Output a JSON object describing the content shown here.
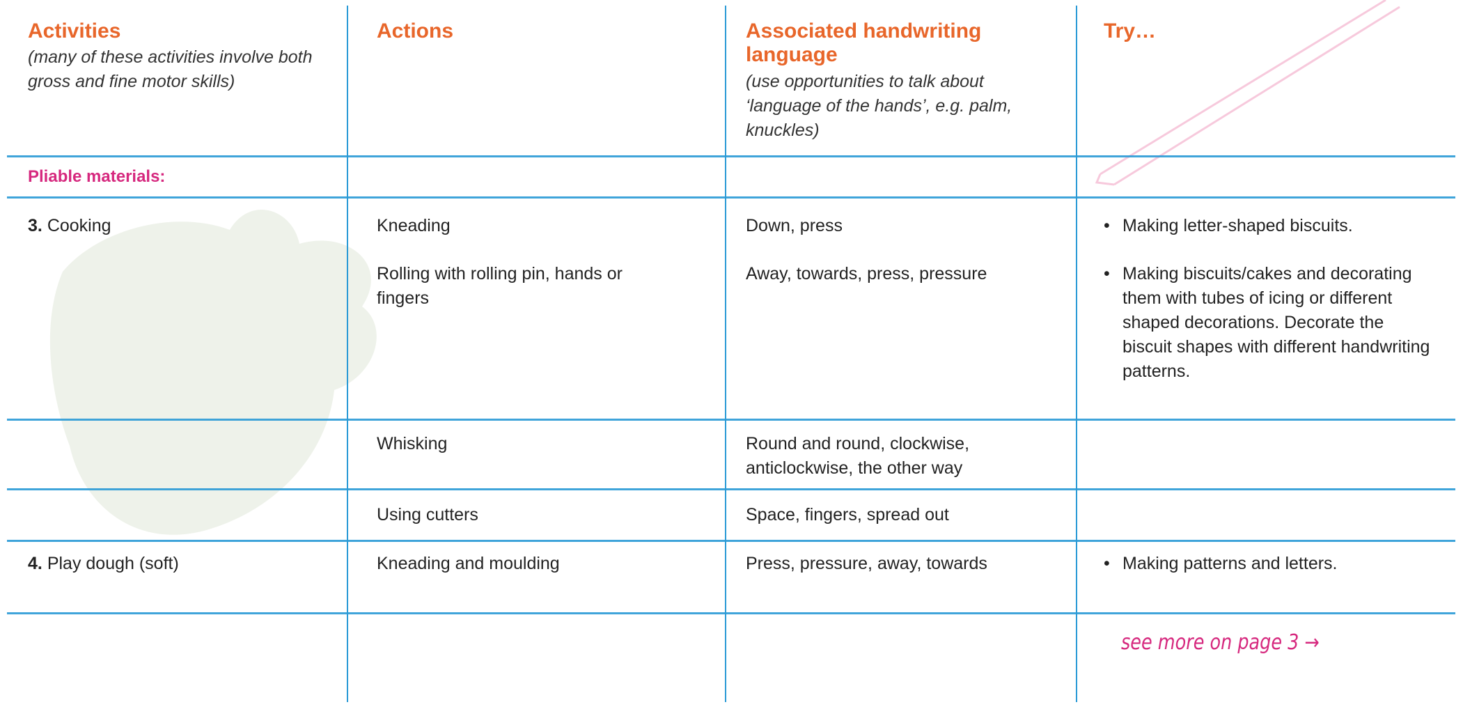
{
  "header": {
    "columns": [
      {
        "title": "Activities",
        "subtitle": "(many of these activities involve both gross and fine motor skills)"
      },
      {
        "title": "Actions"
      },
      {
        "title": "Associated handwriting language",
        "subtitle": "(use opportunities to talk about ‘language of the hands’, e.g. palm, knuckles)"
      },
      {
        "title": "Try…"
      }
    ]
  },
  "section": "Pliable materials:",
  "rows": [
    {
      "number": "3.",
      "activity": "Cooking",
      "actions": [
        "Kneading",
        "Rolling with rolling pin, hands or fingers"
      ],
      "language": [
        "Down, press",
        "Away, towards, press, pressure"
      ],
      "try": [
        "Making letter-shaped biscuits.",
        "Making biscuits/cakes and decorating them with tubes of icing or different shaped decorations.  Decorate the biscuit shapes with different handwriting patterns."
      ]
    },
    {
      "actions": [
        "Whisking"
      ],
      "language": [
        "Round and round, clockwise, anticlockwise, the other way"
      ]
    },
    {
      "actions": [
        "Using cutters"
      ],
      "language": [
        "Space, fingers, spread out"
      ]
    },
    {
      "number": "4.",
      "activity": "Play dough (soft)",
      "actions": [
        "Kneading and moulding"
      ],
      "language": [
        "Press, pressure, away, towards"
      ],
      "try": [
        "Making patterns and letters."
      ]
    }
  ],
  "footer_link": "see more on page 3 →"
}
